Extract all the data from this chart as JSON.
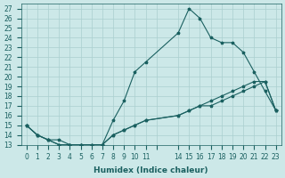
{
  "xlabel": "Humidex (Indice chaleur)",
  "ylabel": "",
  "xlim": [
    -0.5,
    23.5
  ],
  "ylim": [
    13,
    27.5
  ],
  "yticks": [
    13,
    14,
    15,
    16,
    17,
    18,
    19,
    20,
    21,
    22,
    23,
    24,
    25,
    26,
    27
  ],
  "xtick_positions": [
    0,
    1,
    2,
    3,
    4,
    5,
    6,
    7,
    8,
    9,
    10,
    11,
    12,
    14,
    15,
    16,
    17,
    18,
    19,
    20,
    21,
    22,
    23
  ],
  "xtick_labels": [
    "0",
    "1",
    "2",
    "3",
    "4",
    "5",
    "6",
    "7",
    "8",
    "9",
    "10",
    "11",
    "",
    "14",
    "15",
    "16",
    "17",
    "18",
    "19",
    "20",
    "21",
    "22",
    "23"
  ],
  "bg_color": "#cce8e8",
  "grid_color": "#aacfcf",
  "line_color": "#1a6060",
  "line1_x": [
    0,
    1,
    2,
    3,
    4,
    5,
    6,
    7,
    8,
    9,
    10,
    11,
    14,
    15,
    16,
    17,
    18,
    19,
    20,
    21,
    22,
    23
  ],
  "line1_y": [
    15,
    14,
    13.5,
    13,
    13,
    13,
    13,
    13,
    15.5,
    17.5,
    20.5,
    21.5,
    24.5,
    27,
    26,
    24,
    23.5,
    23.5,
    22.5,
    20.5,
    18.5,
    16.5
  ],
  "line2_x": [
    0,
    1,
    2,
    3,
    4,
    5,
    6,
    7,
    8,
    9,
    10,
    11,
    14,
    15,
    16,
    17,
    18,
    19,
    20,
    21,
    22,
    23
  ],
  "line2_y": [
    15,
    14,
    13.5,
    13.5,
    13,
    13,
    12.5,
    13,
    14,
    14.5,
    15,
    15.5,
    16,
    16.5,
    17,
    17,
    17.5,
    18,
    18.5,
    19,
    19.5,
    16.5
  ],
  "line3_x": [
    0,
    1,
    2,
    3,
    4,
    5,
    6,
    7,
    8,
    9,
    10,
    11,
    14,
    15,
    16,
    17,
    18,
    19,
    20,
    21,
    22,
    23
  ],
  "line3_y": [
    15,
    14,
    13.5,
    13,
    13,
    13,
    13,
    13,
    14,
    14.5,
    15,
    15.5,
    16,
    16.5,
    17,
    17.5,
    18,
    18.5,
    19,
    19.5,
    19.5,
    16.5
  ]
}
